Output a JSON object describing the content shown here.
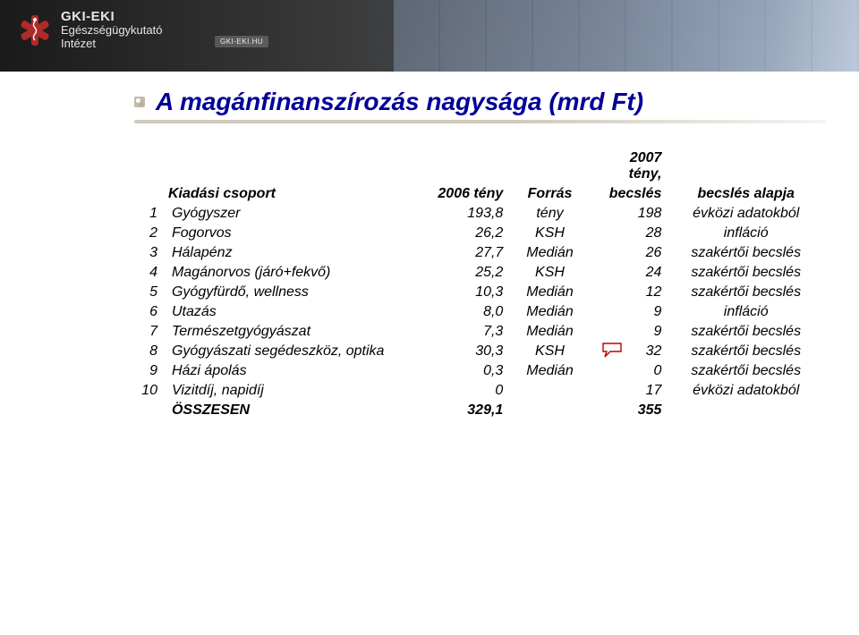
{
  "brand": {
    "name": "GKI-EKI",
    "subtitle1": "Egészségügykutató",
    "subtitle2": "Intézet",
    "site": "GKI-EKI.HU"
  },
  "title": "A magánfinanszírozás nagysága (mrd Ft)",
  "columns": {
    "group": "Kiadási csoport",
    "y2006": "2006 tény",
    "source": "Forrás",
    "y2007a": "2007 tény,",
    "y2007b": "becslés",
    "basis": "becslés alapja"
  },
  "rows": [
    {
      "idx": "1",
      "name": "Gyógyszer",
      "v2006": "193,8",
      "src": "tény",
      "v2007": "198",
      "basis": "évközi adatokból"
    },
    {
      "idx": "2",
      "name": "Fogorvos",
      "v2006": "26,2",
      "src": "KSH",
      "v2007": "28",
      "basis": "infláció"
    },
    {
      "idx": "3",
      "name": "Hálapénz",
      "v2006": "27,7",
      "src": "Medián",
      "v2007": "26",
      "basis": "szakértői becslés"
    },
    {
      "idx": "4",
      "name": "Magánorvos (járó+fekvő)",
      "v2006": "25,2",
      "src": "KSH",
      "v2007": "24",
      "basis": "szakértői becslés"
    },
    {
      "idx": "5",
      "name": "Gyógyfürdő, wellness",
      "v2006": "10,3",
      "src": "Medián",
      "v2007": "12",
      "basis": "szakértői becslés"
    },
    {
      "idx": "6",
      "name": "Utazás",
      "v2006": "8,0",
      "src": "Medián",
      "v2007": "9",
      "basis": "infláció"
    },
    {
      "idx": "7",
      "name": "Természetgyógyászat",
      "v2006": "7,3",
      "src": "Medián",
      "v2007": "9",
      "basis": "szakértői becslés"
    },
    {
      "idx": "8",
      "name": "Gyógyászati segédeszköz, optika",
      "v2006": "30,3",
      "src": "KSH",
      "v2007": "32",
      "basis": "szakértői becslés"
    },
    {
      "idx": "9",
      "name": "Házi ápolás",
      "v2006": "0,3",
      "src": "Medián",
      "v2007": "0",
      "basis": "szakértői becslés"
    },
    {
      "idx": "10",
      "name": "Vizitdíj, napidíj",
      "v2006": "0",
      "src": "",
      "v2007": "17",
      "basis": "évközi adatokból"
    }
  ],
  "total": {
    "name": "ÖSSZESEN",
    "v2006": "329,1",
    "src": "",
    "v2007": "355",
    "basis": ""
  },
  "colors": {
    "title": "#000099",
    "underline": "#d0cabb",
    "callout": "#c00000"
  }
}
